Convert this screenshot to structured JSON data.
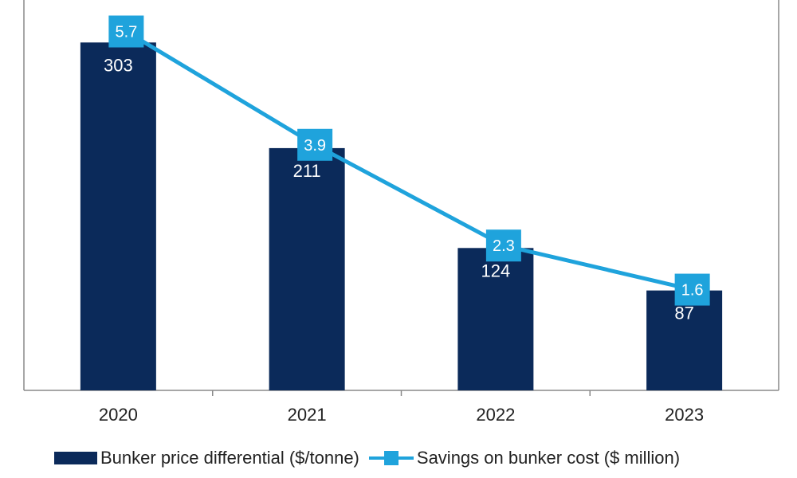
{
  "colors": {
    "bar": "#0b2a5a",
    "line": "#1fa3dc",
    "axis": "#8a8a8a",
    "text": "#222222"
  },
  "chart_data": {
    "type": "bar",
    "categories": [
      "2020",
      "2021",
      "2022",
      "2023"
    ],
    "series": [
      {
        "name": "Bunker price differential ($/tonne)",
        "type": "bar",
        "values": [
          303,
          211,
          124,
          87
        ],
        "labels": [
          "303",
          "211",
          "124",
          "87"
        ],
        "ylim": [
          0,
          340
        ]
      },
      {
        "name": "Savings on bunker cost ($ million)",
        "type": "line",
        "values": [
          5.7,
          3.9,
          2.3,
          1.6
        ],
        "labels": [
          "5.7",
          "3.9",
          "2.3",
          "1.6"
        ],
        "ylim": [
          0,
          6.2
        ]
      }
    ],
    "legend": "bottom"
  }
}
